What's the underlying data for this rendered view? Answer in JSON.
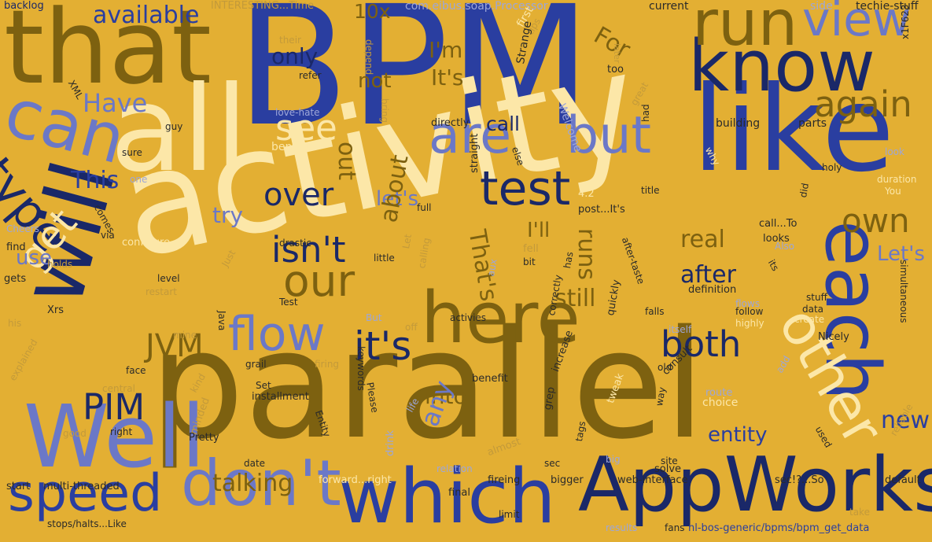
{
  "background": "#E3AF33",
  "palette": {
    "royal_blue": "#2A3EA0",
    "light_blue": "#6B78C7",
    "navy": "#1A2868",
    "olive": "#7D6110",
    "cream": "#FCE7A8"
  },
  "words": [
    "BPM",
    "activity",
    "parallel",
    "like",
    "that",
    "know",
    "all",
    "which",
    "AppWorks",
    "each",
    "will",
    "Well",
    "can",
    "run",
    "type",
    "view",
    "here",
    "other",
    "flow",
    "don't",
    "speed",
    "test",
    "it's",
    "are",
    "but",
    "isn't",
    "our",
    "get",
    "see",
    "both",
    "own",
    "again",
    "JVM",
    "PIM",
    "over",
    "This",
    "Have",
    "available",
    "only",
    "not",
    "I'm",
    "It's",
    "10x",
    "For",
    "out",
    "let's",
    "try",
    "real",
    "after",
    "still",
    "runs",
    "about",
    "That's",
    "I'll",
    "call",
    "into",
    "any",
    "entity",
    "new",
    "Let's",
    "talking",
    "use",
    "backlog",
    "INTERESTING...Time",
    "com.eibus.soap.Processor",
    "current",
    "side",
    "techie-stuff",
    "their",
    "depend",
    "refer",
    "first",
    "tips",
    "later",
    "too",
    "x1F623",
    "XML",
    "love-hate",
    "guy",
    "bring",
    "directly",
    "Strange",
    "Welcome",
    "great",
    "had",
    "building",
    "parts",
    "benefits",
    "sure",
    "one",
    "comes",
    "Cheers",
    "via",
    "find",
    "gets",
    "Xrs",
    "explained",
    "face",
    "central",
    "kind",
    "minded",
    "Pretty",
    "right",
    "start",
    "multi-threaded",
    "stops/halts...Like",
    "configure",
    "Just",
    "drastic",
    "little",
    "fell",
    "bit",
    "level",
    "restart",
    "Java",
    "Test",
    "keywords",
    "grail",
    "firing",
    "Set",
    "installment",
    "Please",
    "life",
    "Entity",
    "date",
    "forward...right",
    "fireing",
    "bigger",
    "web-interface",
    "sec!?...So",
    "default",
    "limit",
    "results",
    "fans",
    "nl-bos-generic/bpms/bpm_get_data",
    "holy",
    "duration",
    "You",
    "look",
    "else",
    "why",
    "4.2",
    "title",
    "full",
    "straight",
    "post...It's",
    "call...To",
    "did",
    "looks",
    "Also",
    "its",
    "simultaneous",
    "stuff",
    "data",
    "create",
    "highly",
    "follow",
    "flows",
    "definition",
    "after-taste",
    "falls",
    "has",
    "aux",
    "calling",
    "Let",
    "But",
    "off",
    "activies",
    "correctly",
    "quickly",
    "itself",
    "old",
    "consult",
    "route",
    "choice",
    "tweak",
    "way",
    "increase",
    "tags",
    "grep",
    "big",
    "site",
    "solve",
    "sec",
    "final",
    "relation",
    "drink",
    "almost",
    "used",
    "reliable",
    "add",
    "Nicely",
    "benefit",
    "holds",
    "his",
    "mine",
    "take",
    "good"
  ]
}
